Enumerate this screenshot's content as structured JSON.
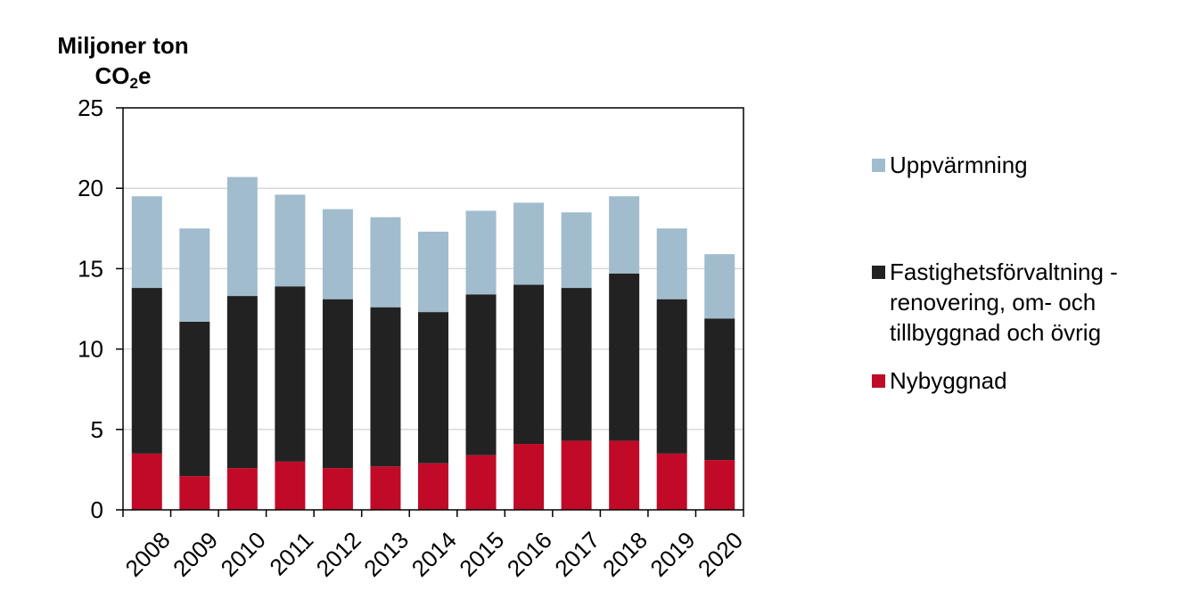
{
  "chart_data": {
    "type": "bar",
    "stacked": true,
    "ylabel_line1": "Miljoner ton",
    "ylabel_line2_prefix": "CO",
    "ylabel_line2_sub": "2",
    "ylabel_line2_suffix": "e",
    "categories": [
      "2008",
      "2009",
      "2010",
      "2011",
      "2012",
      "2013",
      "2014",
      "2015",
      "2016",
      "2017",
      "2018",
      "2019",
      "2020"
    ],
    "ylim": [
      0,
      25
    ],
    "yticks": [
      "0",
      "5",
      "10",
      "15",
      "20",
      "25"
    ],
    "grid": true,
    "legend_position": "right",
    "series": [
      {
        "name": "Nybyggnad",
        "color": "#c00a27",
        "values": [
          3.5,
          2.1,
          2.6,
          3.0,
          2.6,
          2.7,
          2.9,
          3.4,
          4.1,
          4.3,
          4.3,
          3.5,
          3.1
        ]
      },
      {
        "name": "Fastighetsförvaltning - renovering, om- och tillbyggnad och övrig",
        "color": "#222222",
        "values": [
          10.3,
          9.6,
          10.7,
          10.9,
          10.5,
          9.9,
          9.4,
          10.0,
          9.9,
          9.5,
          10.4,
          9.6,
          8.8
        ]
      },
      {
        "name": "Uppvärmning",
        "color": "#a1bccd",
        "values": [
          5.7,
          5.8,
          7.4,
          5.7,
          5.6,
          5.6,
          5.0,
          5.2,
          5.1,
          4.7,
          4.8,
          4.4,
          4.0
        ]
      }
    ]
  }
}
